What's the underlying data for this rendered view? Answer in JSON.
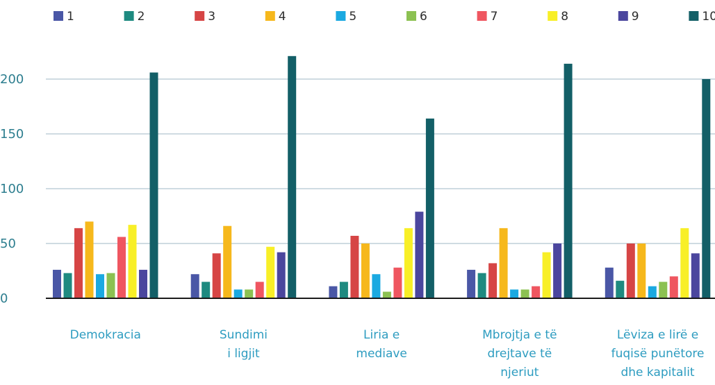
{
  "chart_data": {
    "type": "bar",
    "categories": [
      [
        "Demokracia"
      ],
      [
        "Sundimi",
        "i ligjit"
      ],
      [
        "Liria e",
        "mediave"
      ],
      [
        "Mbrojtja e të",
        "drejtave të",
        "njeriut"
      ],
      [
        "Lëviza e lirë e",
        "fuqisë punëtore",
        "dhe kapitalit"
      ]
    ],
    "series": [
      {
        "name": "1",
        "color": "#4a57a6",
        "values": [
          26,
          22,
          11,
          26,
          28
        ]
      },
      {
        "name": "2",
        "color": "#1e8a80",
        "values": [
          23,
          15,
          15,
          23,
          16
        ]
      },
      {
        "name": "3",
        "color": "#d64545",
        "values": [
          64,
          41,
          57,
          32,
          50
        ]
      },
      {
        "name": "4",
        "color": "#f6b81c",
        "values": [
          70,
          66,
          50,
          64,
          50
        ]
      },
      {
        "name": "5",
        "color": "#1ba9e1",
        "values": [
          22,
          8,
          22,
          8,
          11
        ]
      },
      {
        "name": "6",
        "color": "#8cc152",
        "values": [
          23,
          8,
          6,
          8,
          15
        ]
      },
      {
        "name": "7",
        "color": "#ef5660",
        "values": [
          56,
          15,
          28,
          11,
          20
        ]
      },
      {
        "name": "8",
        "color": "#f8ef27",
        "values": [
          67,
          47,
          64,
          42,
          64
        ]
      },
      {
        "name": "9",
        "color": "#4b469e",
        "values": [
          26,
          42,
          79,
          50,
          41
        ]
      },
      {
        "name": "10",
        "color": "#135f67",
        "values": [
          206,
          221,
          164,
          214,
          200
        ]
      }
    ],
    "yticks": [
      0,
      50,
      100,
      150,
      200
    ],
    "ylim": [
      0,
      220
    ],
    "grid": true,
    "legend": "top"
  }
}
